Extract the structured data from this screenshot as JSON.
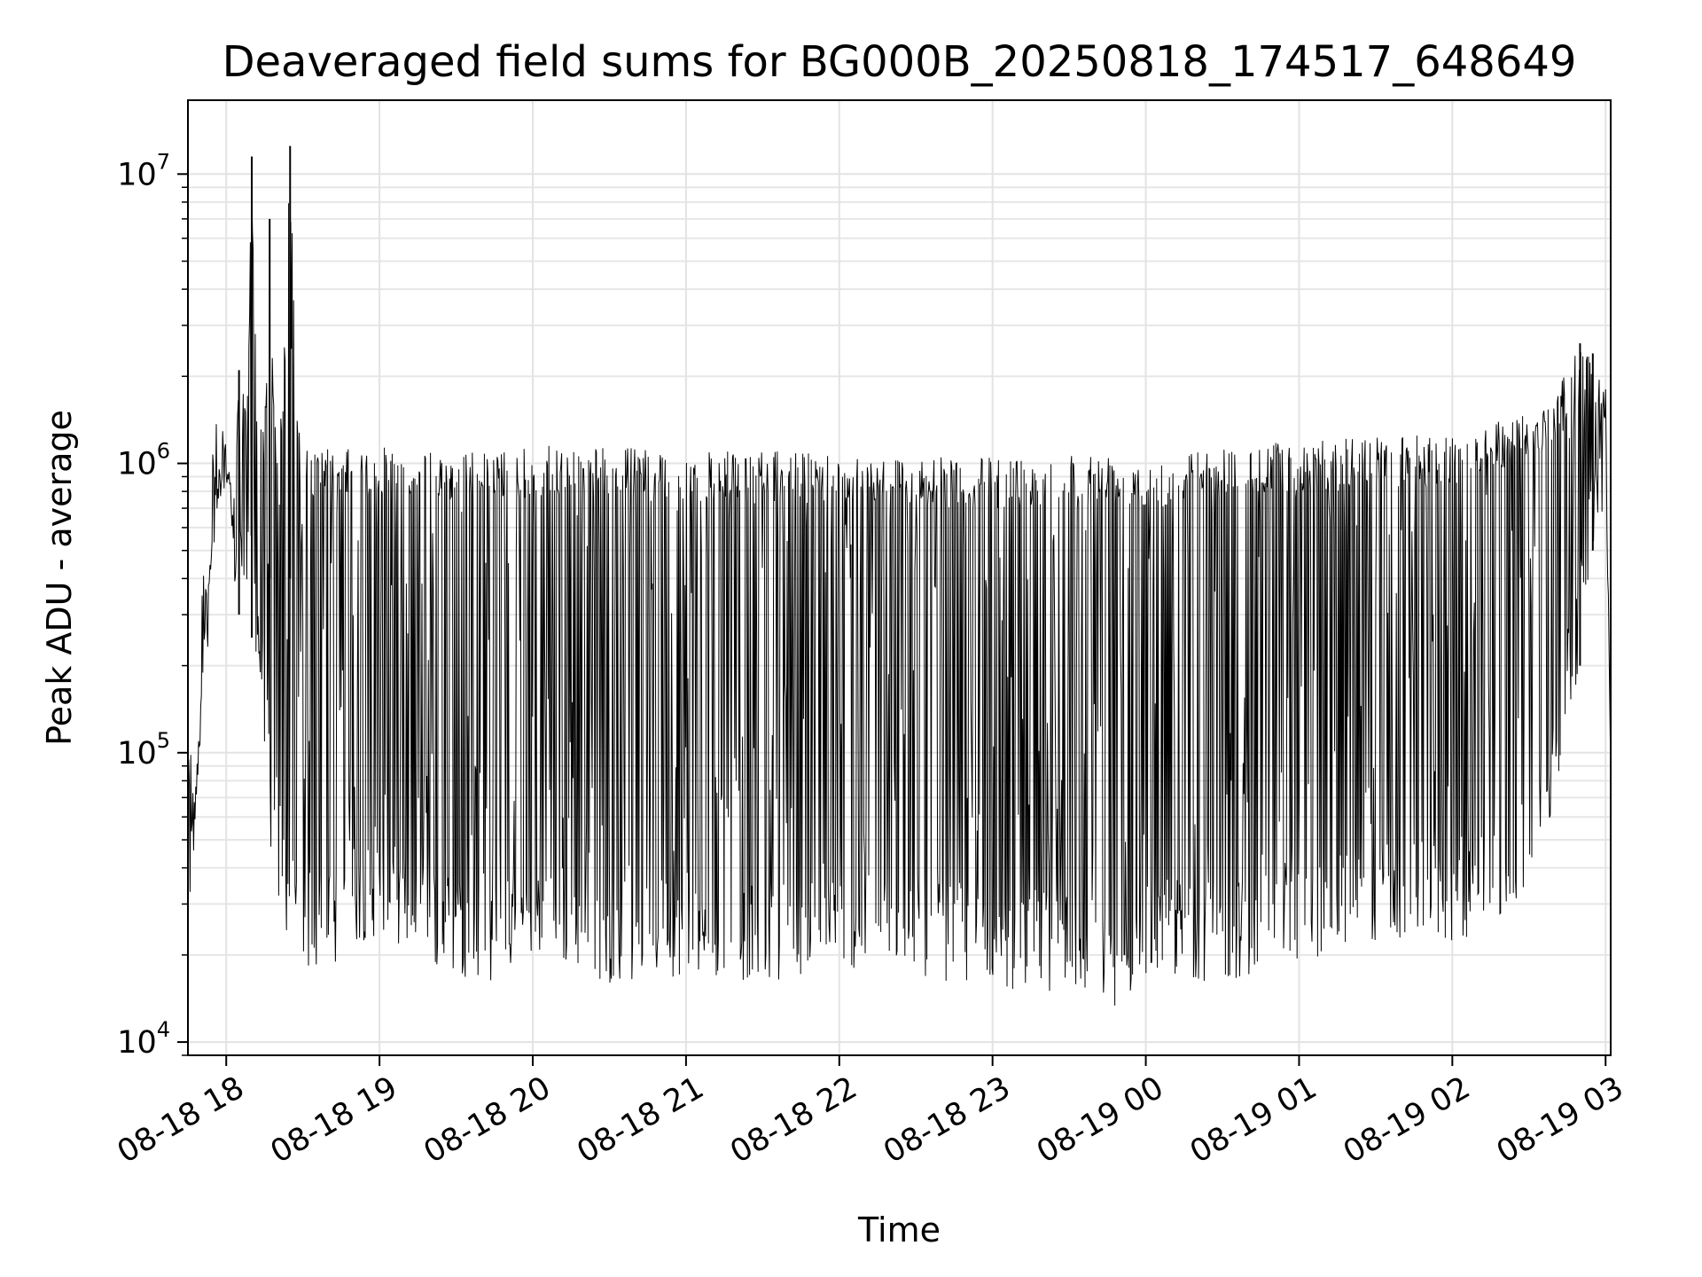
{
  "chart_data": {
    "type": "line",
    "title": "Deaveraged field sums for BG000B_20250818_174517_648649",
    "xlabel": "Time",
    "ylabel": "Peak ADU - average",
    "yscale": "log",
    "ylim": [
      9000,
      18000000
    ],
    "xlim": [
      "2025-08-18 17:45",
      "2025-08-19 03:02"
    ],
    "grid": true,
    "x_ticks": [
      {
        "value": "2025-08-18 18:00",
        "label": "08-18 18"
      },
      {
        "value": "2025-08-18 19:00",
        "label": "08-18 19"
      },
      {
        "value": "2025-08-18 20:00",
        "label": "08-18 20"
      },
      {
        "value": "2025-08-18 21:00",
        "label": "08-18 21"
      },
      {
        "value": "2025-08-18 22:00",
        "label": "08-18 22"
      },
      {
        "value": "2025-08-18 23:00",
        "label": "08-18 23"
      },
      {
        "value": "2025-08-19 00:00",
        "label": "08-19 00"
      },
      {
        "value": "2025-08-19 01:00",
        "label": "08-19 01"
      },
      {
        "value": "2025-08-19 02:00",
        "label": "08-19 02"
      },
      {
        "value": "2025-08-19 03:00",
        "label": "08-19 03"
      }
    ],
    "y_ticks": [
      {
        "value": 10000,
        "base": "10",
        "exp": "4"
      },
      {
        "value": 100000,
        "base": "10",
        "exp": "5"
      },
      {
        "value": 1000000,
        "base": "10",
        "exp": "6"
      },
      {
        "value": 10000000,
        "base": "10",
        "exp": "7"
      }
    ],
    "series": [
      {
        "color": "#000000",
        "x": [
          "2025-08-18 17:45",
          "2025-08-18 17:48",
          "2025-08-18 17:51",
          "2025-08-18 17:54",
          "2025-08-18 17:57",
          "2025-08-18 18:00",
          "2025-08-18 18:02",
          "2025-08-18 18:05",
          "2025-08-18 18:08",
          "2025-08-18 18:10",
          "2025-08-18 18:12",
          "2025-08-18 18:15",
          "2025-08-18 18:17",
          "2025-08-18 18:19",
          "2025-08-18 18:22",
          "2025-08-18 18:25",
          "2025-08-18 18:28",
          "2025-08-18 18:31",
          "2025-08-18 18:34",
          "2025-08-18 18:37",
          "2025-08-18 18:39",
          "2025-08-18 18:42",
          "2025-08-18 18:45",
          "2025-08-18 18:50",
          "2025-08-18 19:00",
          "2025-08-18 19:15",
          "2025-08-18 19:30",
          "2025-08-18 19:45",
          "2025-08-18 20:00",
          "2025-08-18 20:30",
          "2025-08-18 21:00",
          "2025-08-18 21:30",
          "2025-08-18 22:00",
          "2025-08-18 22:30",
          "2025-08-18 23:00",
          "2025-08-18 23:30",
          "2025-08-18 23:50",
          "2025-08-19 00:00",
          "2025-08-19 00:30",
          "2025-08-19 01:00",
          "2025-08-19 01:30",
          "2025-08-19 02:00",
          "2025-08-19 02:20",
          "2025-08-19 02:40",
          "2025-08-19 02:50",
          "2025-08-19 02:55",
          "2025-08-19 03:00",
          "2025-08-19 03:02"
        ],
        "upper": [
          40000,
          75000,
          200000,
          500000,
          1000000,
          1300000,
          700000,
          2100000,
          1500000,
          11500000,
          1600000,
          1500000,
          7000000,
          1400000,
          1500000,
          12500000,
          1300000,
          1200000,
          1100000,
          1150000,
          1150000,
          1100000,
          1150000,
          1100000,
          1150000,
          1100000,
          1100000,
          1100000,
          1150000,
          1150000,
          1100000,
          1100000,
          1100000,
          1050000,
          1050000,
          1100000,
          1100000,
          1050000,
          1150000,
          1200000,
          1250000,
          1250000,
          1450000,
          1700000,
          2600000,
          2400000,
          1900000,
          110000
        ],
        "lower": [
          40000,
          75000,
          200000,
          500000,
          700000,
          600000,
          400000,
          300000,
          300000,
          250000,
          200000,
          100000,
          50000,
          30000,
          25000,
          20000,
          20000,
          18000,
          17000,
          18000,
          16000,
          18000,
          20000,
          22000,
          23000,
          19000,
          17000,
          16000,
          20000,
          16000,
          17000,
          16000,
          18000,
          17000,
          15000,
          15000,
          13000,
          17000,
          16000,
          19000,
          22000,
          22000,
          24000,
          60000,
          200000,
          500000,
          700000,
          90000
        ]
      }
    ]
  }
}
